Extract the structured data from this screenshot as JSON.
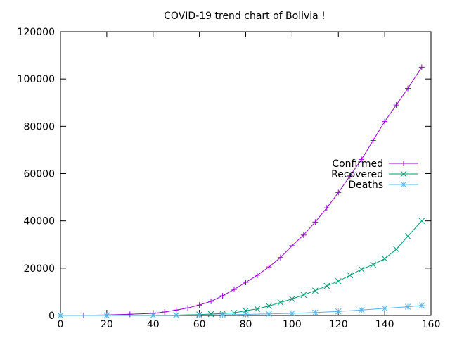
{
  "chart_data": {
    "type": "line",
    "title": "COVID-19 trend chart of Bolivia !",
    "xlabel": "",
    "ylabel": "",
    "xlim": [
      0,
      160
    ],
    "ylim": [
      0,
      120000
    ],
    "xticks": [
      0,
      20,
      40,
      60,
      80,
      100,
      120,
      140,
      160
    ],
    "yticks": [
      0,
      20000,
      40000,
      60000,
      80000,
      100000,
      120000
    ],
    "x_tick_labels": [
      "0",
      "20",
      "40",
      "60",
      "80",
      "100",
      "120",
      "140",
      "160"
    ],
    "y_tick_labels": [
      "0",
      "20000",
      "40000",
      "60000",
      "80000",
      "100000",
      "120000"
    ],
    "grid": false,
    "legend_position": "right",
    "series": [
      {
        "name": "Confirmed",
        "color": "#9400d3",
        "marker": "plus",
        "x": [
          0,
          10,
          20,
          30,
          40,
          45,
          50,
          55,
          60,
          65,
          70,
          75,
          80,
          85,
          90,
          95,
          100,
          105,
          110,
          115,
          120,
          125,
          130,
          135,
          140,
          145,
          150,
          156
        ],
        "values": [
          0,
          50,
          200,
          500,
          900,
          1500,
          2300,
          3200,
          4400,
          6000,
          8300,
          11000,
          14000,
          17000,
          20500,
          24500,
          29500,
          34000,
          39500,
          45500,
          52000,
          59000,
          66000,
          74000,
          82000,
          89000,
          96000,
          105000
        ]
      },
      {
        "name": "Recovered",
        "color": "#009e73",
        "marker": "cross",
        "x": [
          0,
          20,
          40,
          50,
          60,
          65,
          70,
          75,
          80,
          85,
          90,
          95,
          100,
          105,
          110,
          115,
          120,
          125,
          130,
          135,
          140,
          145,
          150,
          156
        ],
        "values": [
          0,
          20,
          50,
          150,
          400,
          600,
          800,
          1100,
          2000,
          2800,
          4000,
          5500,
          7000,
          8700,
          10500,
          12500,
          14500,
          17000,
          19500,
          21500,
          24000,
          28000,
          33500,
          40000
        ]
      },
      {
        "name": "Deaths",
        "color": "#56b4e9",
        "marker": "star",
        "x": [
          0,
          20,
          40,
          50,
          60,
          70,
          80,
          90,
          100,
          110,
          120,
          130,
          140,
          150,
          156
        ],
        "values": [
          0,
          10,
          50,
          100,
          170,
          280,
          450,
          650,
          900,
          1250,
          1700,
          2300,
          3000,
          3700,
          4200
        ]
      }
    ]
  }
}
